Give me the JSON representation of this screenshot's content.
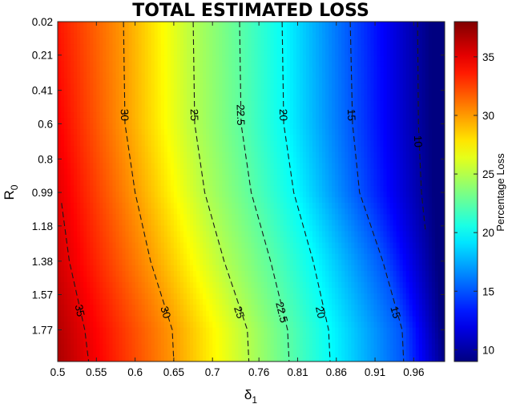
{
  "chart_data": {
    "type": "heatmap",
    "title": "TOTAL ESTIMATED LOSS",
    "xlabel_base": "δ",
    "xlabel_sub": "1",
    "ylabel_base": "R",
    "ylabel_sub": "0",
    "colorbar_label": "Percentage Loss",
    "xlim": [
      0.5,
      1.0
    ],
    "ylim_top_to_bottom": [
      0.02,
      1.95
    ],
    "y_reversed": true,
    "x_ticks": [
      0.5,
      0.55,
      0.6,
      0.65,
      0.7,
      0.76,
      0.81,
      0.86,
      0.91,
      0.96
    ],
    "x_tick_labels": [
      "0.5",
      "0.55",
      "0.6",
      "0.65",
      "0.7",
      "0.76",
      "0.81",
      "0.86",
      "0.91",
      "0.96"
    ],
    "y_ticks": [
      0.02,
      0.21,
      0.41,
      0.6,
      0.8,
      0.99,
      1.18,
      1.38,
      1.57,
      1.77
    ],
    "y_tick_labels": [
      "0.02",
      "0.21",
      "0.41",
      "0.6",
      "0.8",
      "0.99",
      "1.18",
      "1.38",
      "1.57",
      "1.77"
    ],
    "color_range": [
      9,
      38
    ],
    "colorbar_ticks": [
      10,
      15,
      20,
      25,
      30,
      35
    ],
    "colorbar_tick_labels": [
      "10",
      "15",
      "20",
      "25",
      "30",
      "35"
    ],
    "colormap": "jet",
    "contour_style": "dashed",
    "contours": [
      {
        "level": "10",
        "points": [
          [
            0.965,
            0.02
          ],
          [
            0.966,
            0.6
          ],
          [
            0.97,
            0.99
          ],
          [
            0.975,
            1.2
          ]
        ],
        "labels": [
          [
            0.966,
            0.7
          ]
        ]
      },
      {
        "level": "15",
        "points": [
          [
            0.878,
            0.02
          ],
          [
            0.881,
            0.6
          ],
          [
            0.89,
            0.99
          ],
          [
            0.92,
            1.38
          ],
          [
            0.945,
            1.77
          ],
          [
            0.947,
            1.95
          ]
        ],
        "labels": [
          [
            0.88,
            0.55
          ],
          [
            0.937,
            1.67
          ]
        ]
      },
      {
        "level": "20",
        "points": [
          [
            0.79,
            0.02
          ],
          [
            0.792,
            0.6
          ],
          [
            0.805,
            0.99
          ],
          [
            0.83,
            1.38
          ],
          [
            0.85,
            1.77
          ],
          [
            0.852,
            1.95
          ]
        ],
        "labels": [
          [
            0.792,
            0.55
          ],
          [
            0.84,
            1.67
          ]
        ]
      },
      {
        "level": "22.5",
        "points": [
          [
            0.735,
            0.02
          ],
          [
            0.737,
            0.6
          ],
          [
            0.75,
            0.99
          ],
          [
            0.775,
            1.38
          ],
          [
            0.797,
            1.77
          ],
          [
            0.799,
            1.95
          ]
        ],
        "labels": [
          [
            0.737,
            0.55
          ],
          [
            0.79,
            1.67
          ]
        ]
      },
      {
        "level": "25",
        "points": [
          [
            0.675,
            0.02
          ],
          [
            0.677,
            0.6
          ],
          [
            0.69,
            0.99
          ],
          [
            0.715,
            1.38
          ],
          [
            0.745,
            1.77
          ],
          [
            0.747,
            1.95
          ]
        ],
        "labels": [
          [
            0.677,
            0.55
          ],
          [
            0.735,
            1.67
          ]
        ]
      },
      {
        "level": "30",
        "points": [
          [
            0.585,
            0.02
          ],
          [
            0.587,
            0.6
          ],
          [
            0.6,
            0.99
          ],
          [
            0.62,
            1.38
          ],
          [
            0.648,
            1.77
          ],
          [
            0.65,
            1.95
          ]
        ],
        "labels": [
          [
            0.587,
            0.55
          ],
          [
            0.64,
            1.67
          ]
        ]
      },
      {
        "level": "35",
        "points": [
          [
            0.505,
            1.05
          ],
          [
            0.515,
            1.38
          ],
          [
            0.535,
            1.77
          ],
          [
            0.54,
            1.95
          ]
        ],
        "labels": [
          [
            0.529,
            1.66
          ]
        ]
      }
    ]
  }
}
